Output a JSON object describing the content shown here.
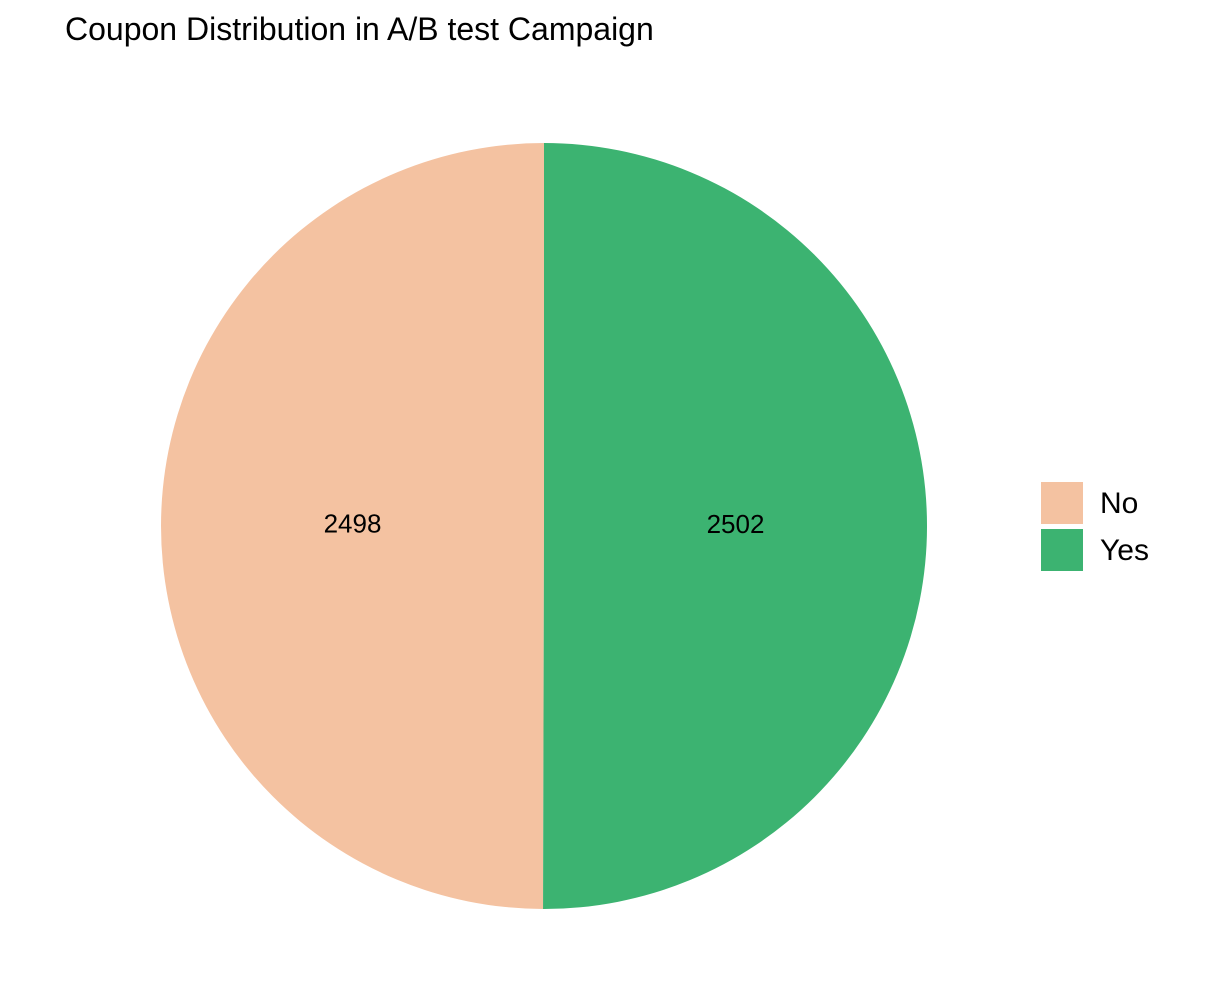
{
  "chart_data": {
    "type": "pie",
    "title": "Coupon Distribution in A/B test Campaign",
    "categories": [
      "No",
      "Yes"
    ],
    "values": [
      2498,
      2502
    ],
    "colors": [
      "#F4C2A1",
      "#3CB371"
    ],
    "legend": "right"
  }
}
